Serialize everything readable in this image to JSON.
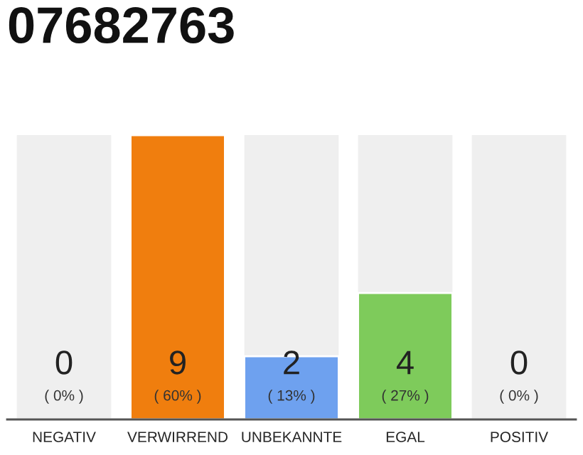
{
  "chart_data": {
    "type": "bar",
    "title": "07682763",
    "categories": [
      "NEGATIV",
      "VERWIRREND",
      "UNBEKANNTE",
      "EGAL",
      "POSITIV"
    ],
    "values": [
      0,
      9,
      2,
      4,
      0
    ],
    "colors": [
      null,
      "#f07e0e",
      "#6ea1ef",
      "#7ecb5b",
      null
    ],
    "value_labels": [
      "0",
      "9",
      "2",
      "4",
      "0"
    ],
    "annotations": [
      "( 0% )",
      "( 60% )",
      "( 13% )",
      "( 27% )",
      "( 0% )"
    ],
    "tick_labels": "x",
    "grid": false,
    "legend": false
  }
}
